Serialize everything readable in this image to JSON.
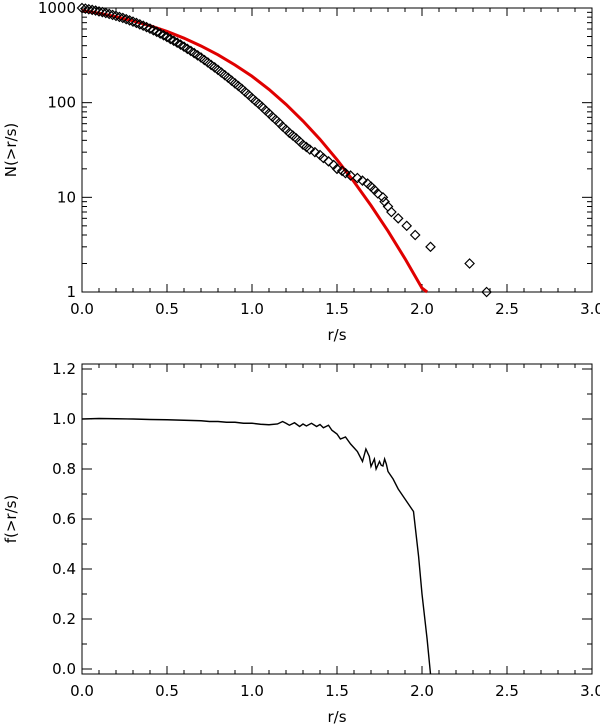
{
  "chart_data": [
    {
      "type": "scatter",
      "xlabel": "r/s",
      "ylabel": "N(>r/s)",
      "xlim": [
        0.0,
        3.0
      ],
      "ylim": [
        1,
        1000
      ],
      "y_scale": "log",
      "xticks": [
        "0.0",
        "0.5",
        "1.0",
        "1.5",
        "2.0",
        "2.5",
        "3.0"
      ],
      "yticks": [
        "1",
        "10",
        "100",
        "1000"
      ],
      "series": [
        {
          "marker": "diamond",
          "color": "#000000",
          "points": [
            [
              0.0,
              1000
            ],
            [
              0.02,
              985
            ],
            [
              0.04,
              970
            ],
            [
              0.06,
              955
            ],
            [
              0.08,
              940
            ],
            [
              0.1,
              920
            ],
            [
              0.12,
              905
            ],
            [
              0.14,
              885
            ],
            [
              0.16,
              865
            ],
            [
              0.18,
              845
            ],
            [
              0.2,
              825
            ],
            [
              0.22,
              805
            ],
            [
              0.24,
              785
            ],
            [
              0.26,
              762
            ],
            [
              0.28,
              740
            ],
            [
              0.3,
              718
            ],
            [
              0.32,
              695
            ],
            [
              0.34,
              672
            ],
            [
              0.36,
              650
            ],
            [
              0.38,
              628
            ],
            [
              0.4,
              605
            ],
            [
              0.42,
              582
            ],
            [
              0.44,
              560
            ],
            [
              0.46,
              538
            ],
            [
              0.48,
              515
            ],
            [
              0.5,
              493
            ],
            [
              0.52,
              470
            ],
            [
              0.54,
              450
            ],
            [
              0.56,
              430
            ],
            [
              0.58,
              410
            ],
            [
              0.6,
              390
            ],
            [
              0.62,
              370
            ],
            [
              0.64,
              352
            ],
            [
              0.66,
              334
            ],
            [
              0.68,
              316
            ],
            [
              0.7,
              300
            ],
            [
              0.72,
              282
            ],
            [
              0.74,
              266
            ],
            [
              0.76,
              250
            ],
            [
              0.78,
              236
            ],
            [
              0.8,
              222
            ],
            [
              0.82,
              208
            ],
            [
              0.84,
              195
            ],
            [
              0.86,
              183
            ],
            [
              0.88,
              171
            ],
            [
              0.9,
              160
            ],
            [
              0.92,
              150
            ],
            [
              0.94,
              140
            ],
            [
              0.96,
              130
            ],
            [
              0.98,
              121
            ],
            [
              1.0,
              112
            ],
            [
              1.02,
              104
            ],
            [
              1.04,
              97
            ],
            [
              1.06,
              90
            ],
            [
              1.08,
              83
            ],
            [
              1.1,
              77
            ],
            [
              1.12,
              71
            ],
            [
              1.14,
              66
            ],
            [
              1.16,
              61
            ],
            [
              1.18,
              56
            ],
            [
              1.2,
              52
            ],
            [
              1.22,
              48
            ],
            [
              1.24,
              45
            ],
            [
              1.26,
              42
            ],
            [
              1.28,
              39
            ],
            [
              1.3,
              36
            ],
            [
              1.32,
              34
            ],
            [
              1.34,
              32
            ],
            [
              1.37,
              30
            ],
            [
              1.4,
              28
            ],
            [
              1.42,
              26
            ],
            [
              1.45,
              24
            ],
            [
              1.48,
              22
            ],
            [
              1.5,
              20
            ],
            [
              1.53,
              19
            ],
            [
              1.55,
              18
            ],
            [
              1.58,
              17
            ],
            [
              1.62,
              16
            ],
            [
              1.65,
              15
            ],
            [
              1.68,
              14
            ],
            [
              1.7,
              13
            ],
            [
              1.72,
              12
            ],
            [
              1.74,
              11
            ],
            [
              1.77,
              10
            ],
            [
              1.78,
              9
            ],
            [
              1.8,
              8
            ],
            [
              1.82,
              7
            ],
            [
              1.86,
              6
            ],
            [
              1.91,
              5
            ],
            [
              1.96,
              4
            ],
            [
              2.05,
              3
            ],
            [
              2.28,
              2
            ],
            [
              2.38,
              1
            ]
          ]
        },
        {
          "type": "line",
          "color": "#e00000",
          "x": [
            0.0,
            0.1,
            0.2,
            0.3,
            0.4,
            0.5,
            0.6,
            0.7,
            0.8,
            0.9,
            1.0,
            1.1,
            1.2,
            1.3,
            1.4,
            1.5,
            1.6,
            1.7,
            1.8,
            1.9,
            2.0,
            2.03
          ],
          "y": [
            940,
            880,
            810,
            730,
            650,
            565,
            480,
            397,
            320,
            250,
            190,
            138,
            96,
            64,
            41,
            25,
            14.6,
            8.2,
            4.4,
            2.25,
            1.1,
            1.0
          ]
        }
      ]
    },
    {
      "type": "line",
      "xlabel": "r/s",
      "ylabel": "f(>r/s)",
      "xlim": [
        0.0,
        3.0
      ],
      "ylim": [
        -0.02,
        1.22
      ],
      "xticks": [
        "0.0",
        "0.5",
        "1.0",
        "1.5",
        "2.0",
        "2.5",
        "3.0"
      ],
      "yticks": [
        "0.0",
        "0.2",
        "0.4",
        "0.6",
        "0.8",
        "1.0",
        "1.2"
      ],
      "series": [
        {
          "color": "#000000",
          "x": [
            0.0,
            0.1,
            0.2,
            0.3,
            0.4,
            0.5,
            0.6,
            0.7,
            0.75,
            0.8,
            0.85,
            0.9,
            0.95,
            1.0,
            1.05,
            1.1,
            1.15,
            1.18,
            1.2,
            1.22,
            1.25,
            1.28,
            1.3,
            1.32,
            1.35,
            1.38,
            1.4,
            1.42,
            1.45,
            1.47,
            1.5,
            1.52,
            1.55,
            1.58,
            1.6,
            1.62,
            1.65,
            1.67,
            1.69,
            1.7,
            1.72,
            1.73,
            1.75,
            1.76,
            1.77,
            1.78,
            1.79,
            1.8,
            1.83,
            1.86,
            1.9,
            1.95,
            1.98,
            2.0,
            2.03,
            2.05
          ],
          "y": [
            1.0,
            1.002,
            1.001,
            1.0,
            0.998,
            0.997,
            0.995,
            0.993,
            0.99,
            0.99,
            0.987,
            0.987,
            0.983,
            0.983,
            0.979,
            0.977,
            0.98,
            0.99,
            0.983,
            0.975,
            0.985,
            0.97,
            0.98,
            0.972,
            0.983,
            0.97,
            0.978,
            0.965,
            0.975,
            0.955,
            0.94,
            0.92,
            0.928,
            0.9,
            0.885,
            0.87,
            0.83,
            0.88,
            0.85,
            0.81,
            0.84,
            0.8,
            0.83,
            0.815,
            0.812,
            0.84,
            0.82,
            0.79,
            0.76,
            0.72,
            0.68,
            0.63,
            0.45,
            0.3,
            0.12,
            -0.02
          ]
        }
      ]
    }
  ]
}
